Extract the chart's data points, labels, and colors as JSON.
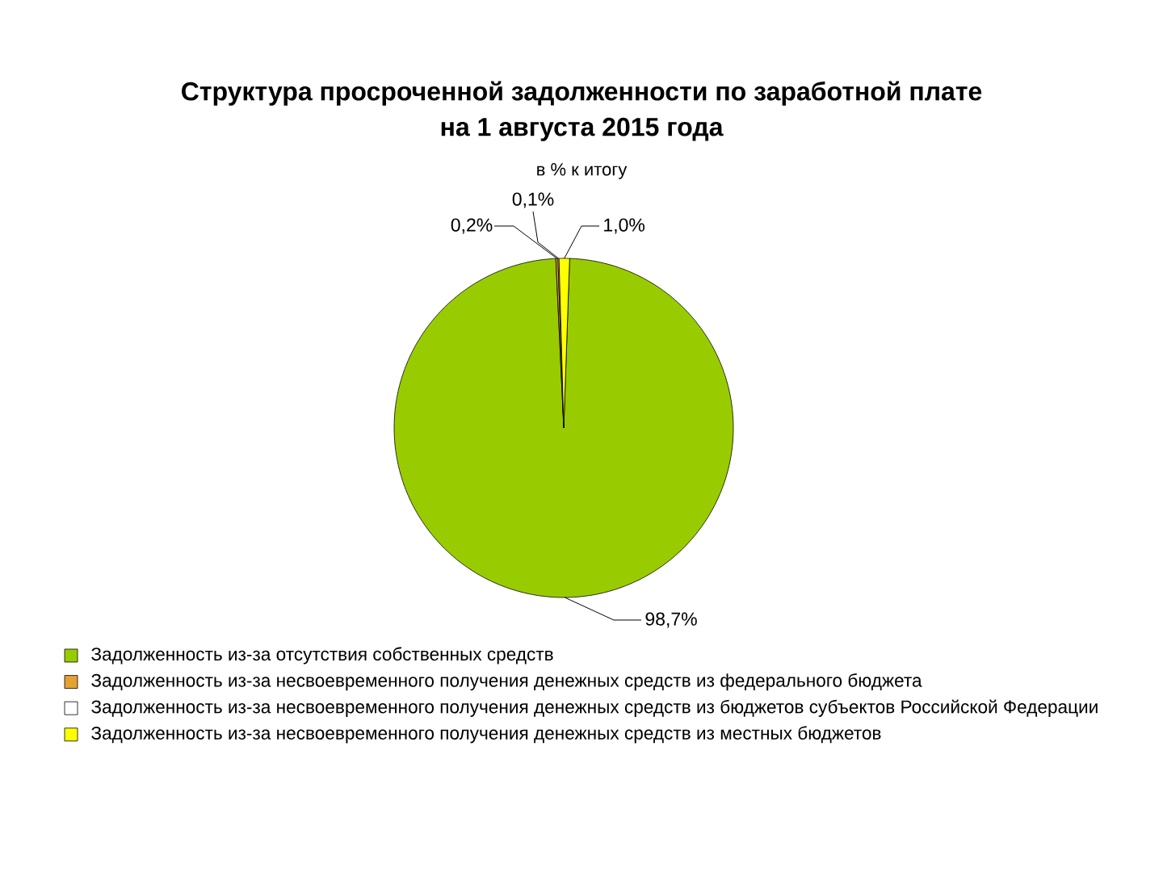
{
  "chart_data": {
    "type": "pie",
    "title": "Структура просроченной задолженности по заработной плате на 1 августа 2015 года",
    "subtitle": "в % к итогу",
    "categories": [
      "Задолженность из-за отсутствия собственных средств",
      "Задолженность из-за несвоевременного получения денежных средств из федерального бюджета",
      "Задолженность из-за несвоевременного получения денежных средств из бюджетов субъектов Российской Федерации",
      "Задолженность из-за несвоевременного получения денежных средств из местных бюджетов"
    ],
    "values": [
      98.7,
      0.2,
      0.1,
      1.0
    ],
    "colors": [
      "#99cc00",
      "#e3a234",
      "#ffffff",
      "#ffff00"
    ],
    "value_labels": [
      "98,7%",
      "0,2%",
      "0,1%",
      "1,0%"
    ],
    "legend": "bottom"
  }
}
